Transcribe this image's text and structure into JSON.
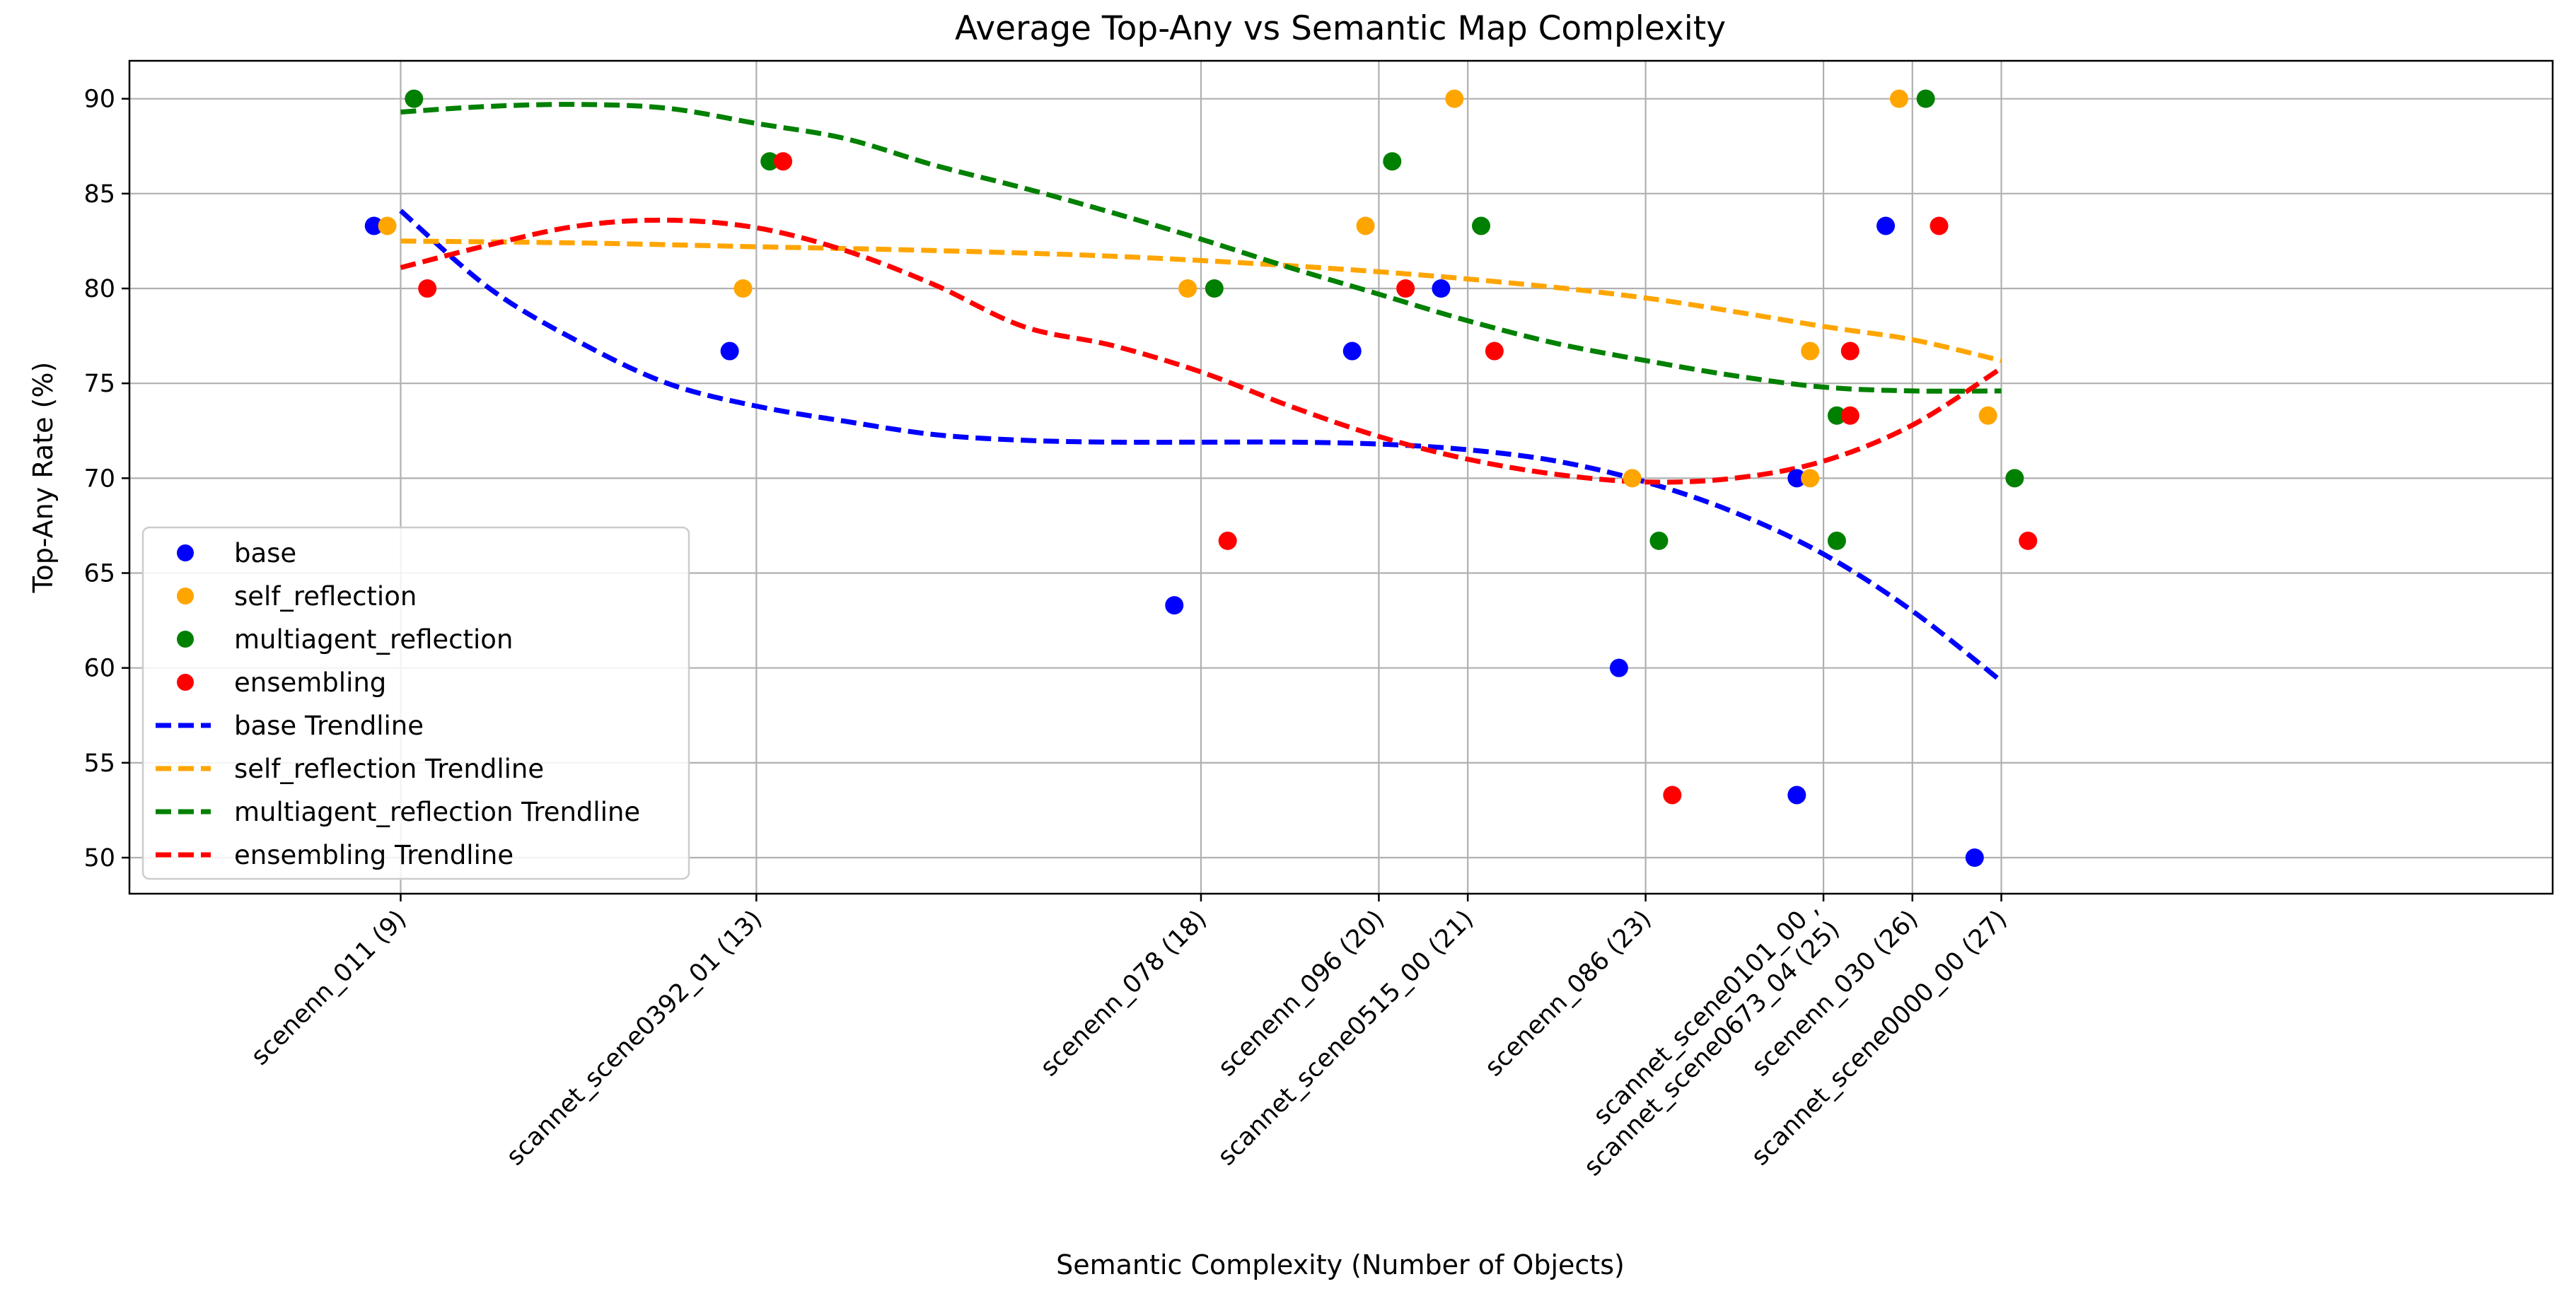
{
  "chart_data": {
    "type": "scatter",
    "title": "Average Top-Any vs Semantic Map Complexity",
    "xlabel": "Semantic Complexity (Number of Objects)",
    "ylabel": "Top-Any Rate (%)",
    "xlim": [
      5.95,
      33.2
    ],
    "ylim": [
      48.1,
      92.0
    ],
    "x_ticks": [
      {
        "x": 9,
        "label": "scenenn_011 (9)"
      },
      {
        "x": 13,
        "label": "scannet_scene0392_01 (13)"
      },
      {
        "x": 18,
        "label": "scenenn_078 (18)"
      },
      {
        "x": 20,
        "label": "scenenn_096 (20)"
      },
      {
        "x": 21,
        "label": "scannet_scene0515_00 (21)"
      },
      {
        "x": 23,
        "label": "scenenn_086 (23)"
      },
      {
        "x": 25,
        "label": "scannet_scene0101_00 ,\nscannet_scene0673_04 (25)"
      },
      {
        "x": 26,
        "label": "scenenn_030 (26)"
      },
      {
        "x": 27,
        "label": "scannet_scene0000_00 (27)"
      }
    ],
    "y_ticks": [
      50,
      55,
      60,
      65,
      70,
      75,
      80,
      85,
      90
    ],
    "grid": true,
    "legend_position": "lower-left",
    "series": [
      {
        "name": "base",
        "color": "#0000ff",
        "points": [
          [
            8.7,
            83.3
          ],
          [
            12.7,
            76.7
          ],
          [
            17.7,
            63.3
          ],
          [
            19.7,
            76.7
          ],
          [
            20.7,
            80.0
          ],
          [
            22.7,
            60.0
          ],
          [
            24.7,
            70.0
          ],
          [
            24.7,
            53.3
          ],
          [
            25.7,
            83.3
          ],
          [
            26.7,
            50.0
          ]
        ]
      },
      {
        "name": "self_reflection",
        "color": "#ffa500",
        "points": [
          [
            8.85,
            83.3
          ],
          [
            12.85,
            80.0
          ],
          [
            17.85,
            80.0
          ],
          [
            19.85,
            83.3
          ],
          [
            20.85,
            90.0
          ],
          [
            22.85,
            70.0
          ],
          [
            24.85,
            76.7
          ],
          [
            24.85,
            70.0
          ],
          [
            25.85,
            90.0
          ],
          [
            26.85,
            73.3
          ]
        ]
      },
      {
        "name": "multiagent_reflection",
        "color": "#008000",
        "points": [
          [
            9.15,
            90.0
          ],
          [
            13.15,
            86.7
          ],
          [
            18.15,
            80.0
          ],
          [
            20.15,
            86.7
          ],
          [
            21.15,
            83.3
          ],
          [
            23.15,
            66.7
          ],
          [
            25.15,
            73.3
          ],
          [
            25.15,
            66.7
          ],
          [
            26.15,
            90.0
          ],
          [
            27.15,
            70.0
          ]
        ]
      },
      {
        "name": "ensembling",
        "color": "#ff0000",
        "points": [
          [
            9.3,
            80.0
          ],
          [
            13.3,
            86.7
          ],
          [
            18.3,
            66.7
          ],
          [
            20.3,
            80.0
          ],
          [
            21.3,
            76.7
          ],
          [
            23.3,
            53.3
          ],
          [
            25.3,
            76.7
          ],
          [
            25.3,
            73.3
          ],
          [
            26.3,
            83.3
          ],
          [
            27.3,
            66.7
          ]
        ]
      }
    ],
    "trendlines": [
      {
        "name": "base Trendline",
        "color": "#0000ff",
        "x_range": [
          9,
          27
        ],
        "points": [
          [
            9,
            84.1
          ],
          [
            10,
            80.0
          ],
          [
            11,
            77.2
          ],
          [
            12,
            75.0
          ],
          [
            13,
            73.8
          ],
          [
            14,
            73.0
          ],
          [
            15,
            72.3
          ],
          [
            16,
            72.0
          ],
          [
            17,
            71.9
          ],
          [
            18,
            71.9
          ],
          [
            19,
            71.9
          ],
          [
            20,
            71.8
          ],
          [
            21,
            71.5
          ],
          [
            22,
            70.9
          ],
          [
            23,
            69.8
          ],
          [
            24,
            68.2
          ],
          [
            25,
            66.0
          ],
          [
            26,
            63.0
          ],
          [
            27,
            59.3
          ]
        ]
      },
      {
        "name": "self_reflection Trendline",
        "color": "#ffa500",
        "x_range": [
          9,
          27
        ],
        "points": [
          [
            9,
            82.5
          ],
          [
            11,
            82.4
          ],
          [
            13,
            82.2
          ],
          [
            15,
            82.0
          ],
          [
            17,
            81.7
          ],
          [
            19,
            81.2
          ],
          [
            21,
            80.5
          ],
          [
            23,
            79.5
          ],
          [
            25,
            78.0
          ],
          [
            26,
            77.3
          ],
          [
            27,
            76.2
          ]
        ]
      },
      {
        "name": "multiagent_reflection Trendline",
        "color": "#008000",
        "x_range": [
          9,
          27
        ],
        "points": [
          [
            9,
            89.3
          ],
          [
            10,
            89.6
          ],
          [
            11,
            89.7
          ],
          [
            12,
            89.5
          ],
          [
            13,
            88.7
          ],
          [
            14,
            87.9
          ],
          [
            15,
            86.5
          ],
          [
            16,
            85.3
          ],
          [
            17,
            84.0
          ],
          [
            18,
            82.6
          ],
          [
            19,
            81.1
          ],
          [
            20,
            79.7
          ],
          [
            21,
            78.3
          ],
          [
            22,
            77.1
          ],
          [
            23,
            76.2
          ],
          [
            24,
            75.4
          ],
          [
            25,
            74.8
          ],
          [
            26,
            74.6
          ],
          [
            27,
            74.6
          ]
        ]
      },
      {
        "name": "ensembling Trendline",
        "color": "#ff0000",
        "x_range": [
          9,
          27
        ],
        "points": [
          [
            9,
            81.1
          ],
          [
            10,
            82.3
          ],
          [
            11,
            83.3
          ],
          [
            12,
            83.6
          ],
          [
            13,
            83.2
          ],
          [
            14,
            82.0
          ],
          [
            15,
            80.2
          ],
          [
            16,
            78.0
          ],
          [
            17,
            77.0
          ],
          [
            18,
            75.6
          ],
          [
            19,
            73.8
          ],
          [
            20,
            72.2
          ],
          [
            21,
            71.0
          ],
          [
            22,
            70.2
          ],
          [
            23,
            69.8
          ],
          [
            24,
            70.0
          ],
          [
            25,
            70.9
          ],
          [
            26,
            72.8
          ],
          [
            27,
            75.8
          ]
        ]
      }
    ]
  }
}
